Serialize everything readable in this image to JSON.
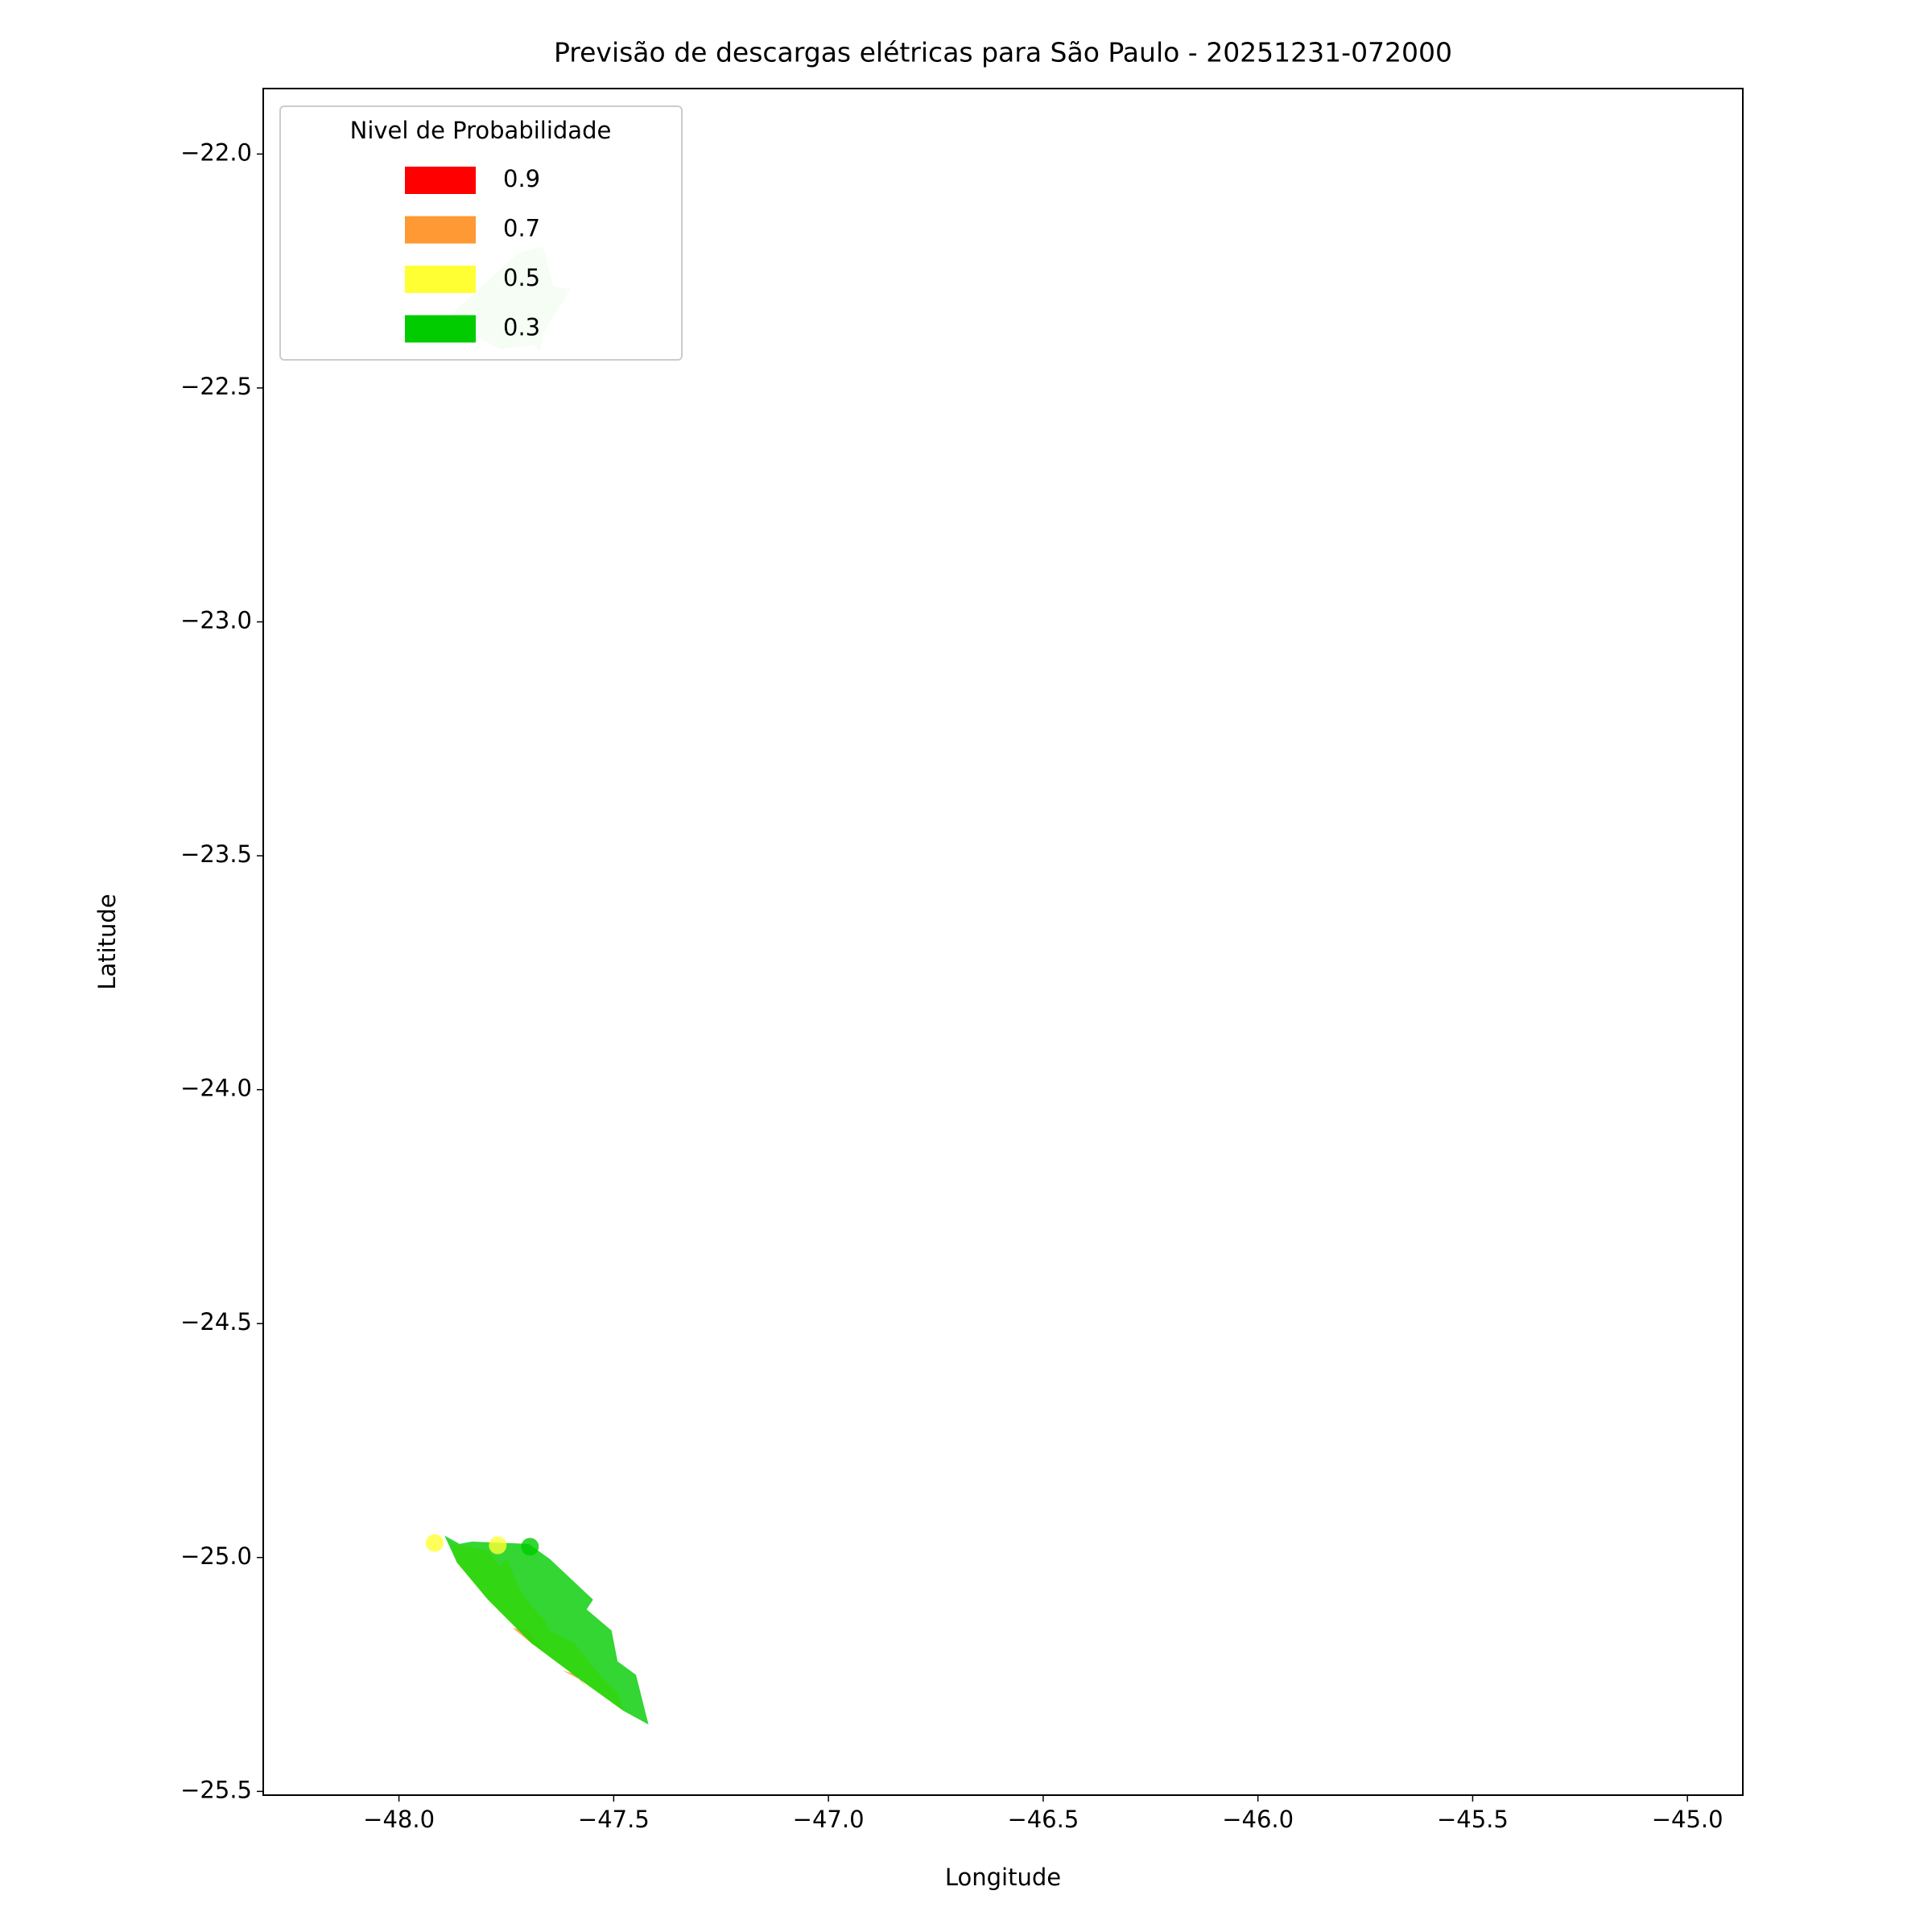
{
  "chart_data": {
    "type": "contour",
    "title": "Previsão de descargas elétricas para São Paulo - 20251231-072000",
    "xlabel": "Longitude",
    "ylabel": "Latitude",
    "xlim": [
      -48.316,
      -44.871
    ],
    "ylim": [
      -25.508,
      -21.86
    ],
    "xticks": [
      {
        "value": -48.0,
        "label": "−48.0"
      },
      {
        "value": -47.5,
        "label": "−47.5"
      },
      {
        "value": -47.0,
        "label": "−47.0"
      },
      {
        "value": -46.5,
        "label": "−46.5"
      },
      {
        "value": -46.0,
        "label": "−46.0"
      },
      {
        "value": -45.5,
        "label": "−45.5"
      },
      {
        "value": -45.0,
        "label": "−45.0"
      }
    ],
    "yticks": [
      {
        "value": -22.0,
        "label": "−22.0"
      },
      {
        "value": -22.5,
        "label": "−22.5"
      },
      {
        "value": -23.0,
        "label": "−23.0"
      },
      {
        "value": -23.5,
        "label": "−23.5"
      },
      {
        "value": -24.0,
        "label": "−24.0"
      },
      {
        "value": -24.5,
        "label": "−24.5"
      },
      {
        "value": -25.0,
        "label": "−25.0"
      },
      {
        "value": -25.5,
        "label": "−25.5"
      }
    ],
    "legend_title": "Nivel de Probabilidade",
    "legend": "upper left",
    "series": [
      {
        "name": "0.9",
        "color": "#ff0000",
        "polygons": [],
        "points": {
          "x": [],
          "y": []
        }
      },
      {
        "name": "0.7",
        "color": "#ff9933",
        "polygons": [
          {
            "alpha": 0.8,
            "x": [
              -47.735,
              -47.698,
              -47.658,
              -47.692
            ],
            "y": [
              -25.151,
              -25.156,
              -25.204,
              -25.183
            ]
          },
          {
            "alpha": 0.8,
            "x": [
              -47.62,
              -47.592,
              -47.563,
              -47.577
            ],
            "y": [
              -25.241,
              -25.249,
              -25.278,
              -25.262
            ]
          }
        ],
        "points": {
          "x": [],
          "y": []
        }
      },
      {
        "name": "0.5",
        "color": "#ffff33",
        "polygons": [
          {
            "alpha": 0.8,
            "x": [
              -47.879,
              -47.793,
              -47.764,
              -47.75,
              -47.721,
              -47.692,
              -47.664,
              -47.649,
              -47.592,
              -47.534,
              -47.491,
              -47.477,
              -47.577,
              -47.692,
              -47.793,
              -47.865
            ],
            "y": [
              -24.971,
              -24.985,
              -25.019,
              -25.003,
              -25.064,
              -25.103,
              -25.13,
              -25.156,
              -25.183,
              -25.249,
              -25.289,
              -25.328,
              -25.262,
              -25.183,
              -25.09,
              -25.011
            ]
          }
        ],
        "points": {
          "x": [
            -47.917,
            -47.77
          ],
          "y": [
            -24.969,
            -24.974
          ]
        }
      },
      {
        "name": "0.3",
        "color": "#00cc00",
        "polygons": [
          {
            "alpha": 0.2,
            "x": [
              -47.879,
              -47.721,
              -47.664,
              -47.641,
              -47.6,
              -47.664,
              -47.672,
              -47.687,
              -47.764,
              -47.836
            ],
            "y": [
              -22.343,
              -22.211,
              -22.198,
              -22.283,
              -22.288,
              -22.383,
              -22.423,
              -22.409,
              -22.417,
              -22.383
            ]
          },
          {
            "alpha": 0.8,
            "x": [
              -47.894,
              -47.859,
              -47.83,
              -47.698,
              -47.649,
              -47.548,
              -47.563,
              -47.505,
              -47.491,
              -47.448,
              -47.419,
              -47.477,
              -47.577,
              -47.692,
              -47.793,
              -47.865
            ],
            "y": [
              -24.953,
              -24.971,
              -24.966,
              -24.971,
              -25.003,
              -25.09,
              -25.111,
              -25.156,
              -25.222,
              -25.251,
              -25.357,
              -25.328,
              -25.262,
              -25.183,
              -25.09,
              -25.011
            ]
          }
        ],
        "points": {
          "x": [
            -47.695
          ],
          "y": [
            -24.977
          ]
        }
      }
    ]
  }
}
